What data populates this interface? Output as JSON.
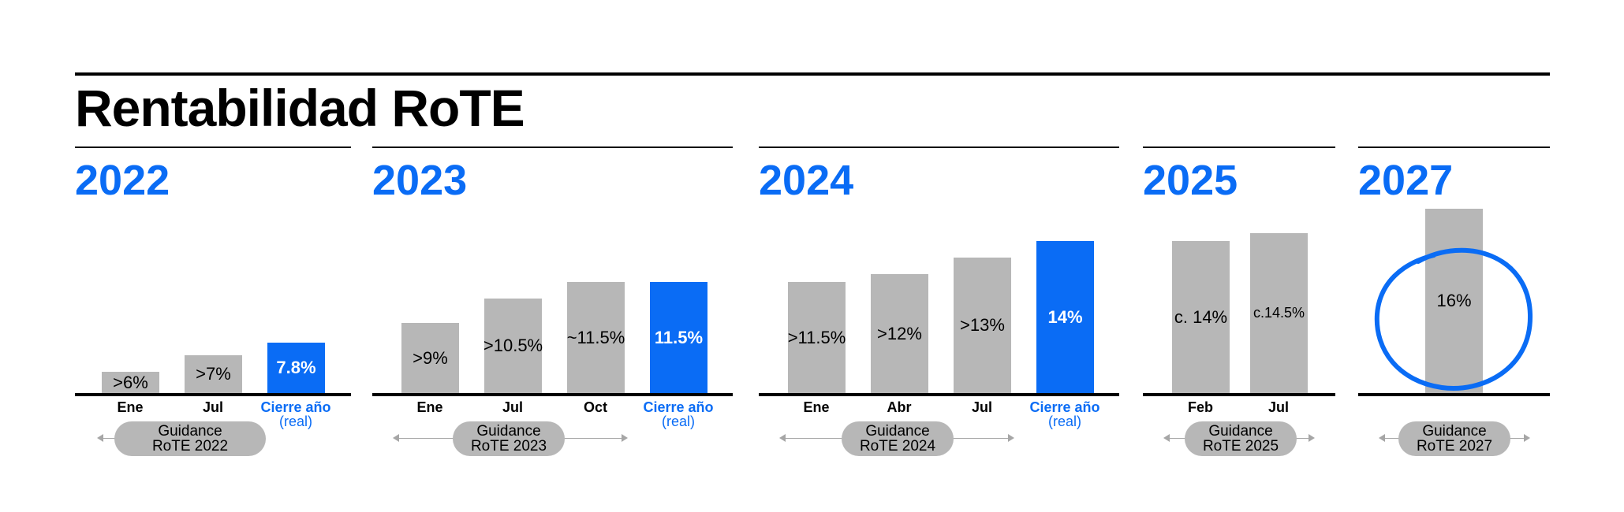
{
  "title": "Rentabilidad RoTE",
  "colors": {
    "accent": "#0a6cf5",
    "bar": "#b7b7b7",
    "pill": "#b7b7b7"
  },
  "chart_data": [
    {
      "type": "bar",
      "year": "2022",
      "categories": [
        "Ene",
        "Jul",
        "Cierre año"
      ],
      "category_sub": [
        "",
        "",
        "(real)"
      ],
      "values": [
        6,
        7,
        7.8
      ],
      "labels": [
        ">6%",
        ">7%",
        "7.8%"
      ],
      "highlight": [
        false,
        false,
        true
      ],
      "guidance": "Guidance RoTE 2022"
    },
    {
      "type": "bar",
      "year": "2023",
      "categories": [
        "Ene",
        "Jul",
        "Oct",
        "Cierre año"
      ],
      "category_sub": [
        "",
        "",
        "",
        "(real)"
      ],
      "values": [
        9,
        10.5,
        11.5,
        11.5
      ],
      "labels": [
        ">9%",
        ">10.5%",
        "~11.5%",
        "11.5%"
      ],
      "highlight": [
        false,
        false,
        false,
        true
      ],
      "guidance": "Guidance RoTE 2023"
    },
    {
      "type": "bar",
      "year": "2024",
      "categories": [
        "Ene",
        "Abr",
        "Jul",
        "Cierre año"
      ],
      "category_sub": [
        "",
        "",
        "",
        "(real)"
      ],
      "values": [
        11.5,
        12,
        13,
        14
      ],
      "labels": [
        ">11.5%",
        ">12%",
        ">13%",
        "14%"
      ],
      "highlight": [
        false,
        false,
        false,
        true
      ],
      "guidance": "Guidance RoTE 2024"
    },
    {
      "type": "bar",
      "year": "2025",
      "categories": [
        "Feb",
        "Jul"
      ],
      "category_sub": [
        "",
        ""
      ],
      "values": [
        14,
        14.5
      ],
      "labels": [
        "c. 14%",
        "c.14.5%"
      ],
      "highlight": [
        false,
        false
      ],
      "guidance": "Guidance RoTE 2025"
    },
    {
      "type": "bar",
      "year": "2027",
      "categories": [
        ""
      ],
      "category_sub": [
        ""
      ],
      "values": [
        16
      ],
      "labels": [
        "16%"
      ],
      "highlight": [
        false
      ],
      "circled": true,
      "guidance": "Guidance RoTE 2027"
    }
  ]
}
